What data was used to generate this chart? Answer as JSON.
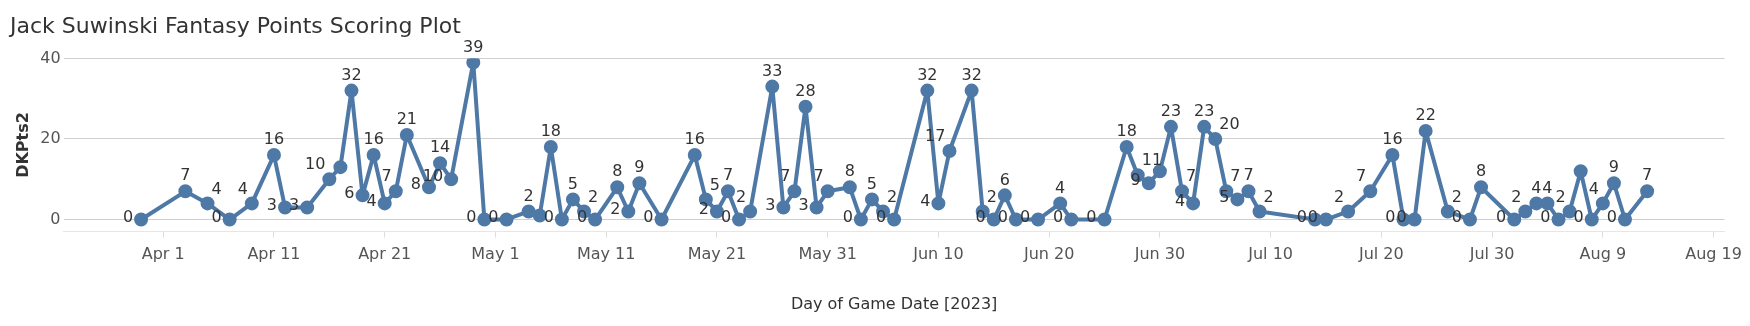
{
  "chart_data": {
    "type": "line",
    "title": "Jack Suwinski Fantasy Points Scoring Plot",
    "xlabel": "Day of Game Date [2023]",
    "ylabel": "DKPts2",
    "x": [
      "2023-03-30",
      "2023-04-03",
      "2023-04-05",
      "2023-04-07",
      "2023-04-09",
      "2023-04-11",
      "2023-04-12",
      "2023-04-14",
      "2023-04-16",
      "2023-04-17",
      "2023-04-18",
      "2023-04-19",
      "2023-04-20",
      "2023-04-21",
      "2023-04-22",
      "2023-04-23",
      "2023-04-25",
      "2023-04-26",
      "2023-04-27",
      "2023-04-29",
      "2023-04-30",
      "2023-05-02",
      "2023-05-04",
      "2023-05-05",
      "2023-05-06",
      "2023-05-07",
      "2023-05-08",
      "2023-05-09",
      "2023-05-10",
      "2023-05-12",
      "2023-05-13",
      "2023-05-14",
      "2023-05-16",
      "2023-05-19",
      "2023-05-20",
      "2023-05-21",
      "2023-05-22",
      "2023-05-23",
      "2023-05-24",
      "2023-05-26",
      "2023-05-27",
      "2023-05-28",
      "2023-05-29",
      "2023-05-30",
      "2023-05-31",
      "2023-06-02",
      "2023-06-03",
      "2023-06-04",
      "2023-06-05",
      "2023-06-06",
      "2023-06-09",
      "2023-06-10",
      "2023-06-11",
      "2023-06-13",
      "2023-06-14",
      "2023-06-15",
      "2023-06-16",
      "2023-06-17",
      "2023-06-19",
      "2023-06-21",
      "2023-06-22",
      "2023-06-25",
      "2023-06-27",
      "2023-06-28",
      "2023-06-29",
      "2023-06-30",
      "2023-07-01",
      "2023-07-02",
      "2023-07-03",
      "2023-07-04",
      "2023-07-05",
      "2023-07-06",
      "2023-07-07",
      "2023-07-08",
      "2023-07-09",
      "2023-07-14",
      "2023-07-15",
      "2023-07-17",
      "2023-07-19",
      "2023-07-21",
      "2023-07-22",
      "2023-07-23",
      "2023-07-24",
      "2023-07-26",
      "2023-07-28",
      "2023-07-29",
      "2023-08-01",
      "2023-08-02",
      "2023-08-03",
      "2023-08-04",
      "2023-08-05",
      "2023-08-06",
      "2023-08-07",
      "2023-08-08",
      "2023-08-09",
      "2023-08-10",
      "2023-08-11",
      "2023-08-13"
    ],
    "series": [
      {
        "color": "#4e79a7",
        "values": [
          0,
          7,
          4,
          0,
          4,
          16,
          3,
          3,
          10,
          13,
          32,
          6,
          16,
          4,
          7,
          21,
          8,
          14,
          10,
          39,
          0,
          0,
          2,
          1,
          18,
          0,
          5,
          2,
          0,
          8,
          2,
          9,
          0,
          16,
          5,
          2,
          7,
          0,
          2,
          33,
          3,
          7,
          28,
          3,
          7,
          8,
          0,
          5,
          2,
          0,
          32,
          4,
          17,
          32,
          2,
          0,
          6,
          0,
          0,
          4,
          0,
          0,
          18,
          11,
          9,
          12,
          23,
          7,
          4,
          23,
          20,
          7,
          5,
          7,
          2,
          0,
          0,
          2,
          7,
          16,
          0,
          0,
          22,
          2,
          0,
          8,
          0,
          2,
          4,
          4,
          0,
          2,
          12,
          0,
          4,
          9,
          0,
          7
        ],
        "value_labels": [
          "0",
          "7",
          "4",
          "0",
          "4",
          "16",
          "3",
          "3",
          "10",
          null,
          "32",
          "6",
          "16",
          "4",
          "7",
          "21",
          "8",
          "14",
          "10",
          "39",
          "0",
          "0",
          "2",
          null,
          "18",
          "0",
          "5",
          "2",
          "0",
          "8",
          "2",
          "9",
          "0",
          "16",
          "5",
          "2",
          "7",
          "0",
          "2",
          "33",
          "3",
          "7",
          "28",
          "3",
          "7",
          "8",
          "0",
          "5",
          "2",
          "0",
          "32",
          "4",
          "17",
          "32",
          "2",
          "0",
          "6",
          "0",
          "0",
          "4",
          "0",
          "0",
          "18",
          "11",
          "9",
          null,
          "23",
          "7",
          "4",
          "23",
          "20",
          "7",
          "5",
          "7",
          "2",
          "0",
          "0",
          "2",
          "7",
          "16",
          "0",
          "0",
          "22",
          "2",
          "0",
          "8",
          "0",
          "2",
          "4",
          "4",
          "0",
          "2",
          null,
          "0",
          "4",
          "9",
          "0",
          "7"
        ]
      }
    ],
    "xlim": [
      "2023-03-23",
      "2023-08-20"
    ],
    "xticks": [
      {
        "value": "2023-04-01",
        "label": "Apr 1"
      },
      {
        "value": "2023-04-11",
        "label": "Apr 11"
      },
      {
        "value": "2023-04-21",
        "label": "Apr 21"
      },
      {
        "value": "2023-05-01",
        "label": "May 1"
      },
      {
        "value": "2023-05-11",
        "label": "May 11"
      },
      {
        "value": "2023-05-21",
        "label": "May 21"
      },
      {
        "value": "2023-05-31",
        "label": "May 31"
      },
      {
        "value": "2023-06-10",
        "label": "Jun 10"
      },
      {
        "value": "2023-06-20",
        "label": "Jun 20"
      },
      {
        "value": "2023-06-30",
        "label": "Jun 30"
      },
      {
        "value": "2023-07-10",
        "label": "Jul 10"
      },
      {
        "value": "2023-07-20",
        "label": "Jul 20"
      },
      {
        "value": "2023-07-30",
        "label": "Jul 30"
      },
      {
        "value": "2023-08-09",
        "label": "Aug 9"
      },
      {
        "value": "2023-08-19",
        "label": "Aug 19"
      }
    ],
    "ylim": [
      -3,
      40
    ],
    "yticks": [
      0,
      20,
      40
    ],
    "grid": "y",
    "marker": "circle",
    "line_style": "solid",
    "legend": false
  }
}
